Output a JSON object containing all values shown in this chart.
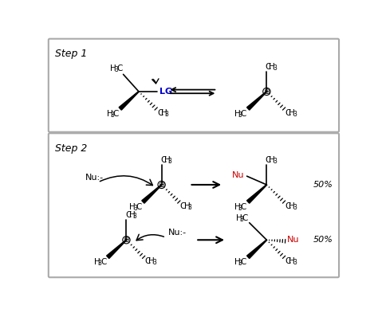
{
  "bg_color": "#ffffff",
  "box_edge_color": "#aaaaaa",
  "step1_label": "Step 1",
  "step2_label": "Step 2",
  "blue_color": "#0000cc",
  "red_color": "#cc0000",
  "label_50pct": "50%"
}
